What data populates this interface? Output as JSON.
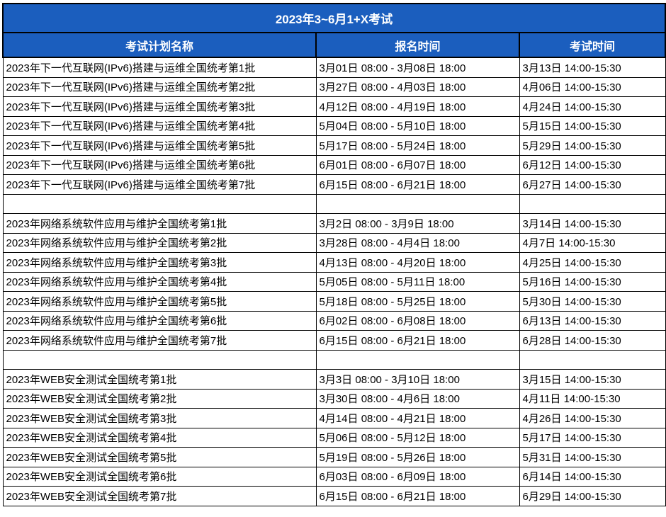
{
  "title": "2023年3~6月1+X考试",
  "colors": {
    "header_blue": "#1B5EBE",
    "border_black": "#000000",
    "row_white": "#ffffff"
  },
  "table": {
    "headers": [
      "考试计划名称",
      "报名时间",
      "考试时间"
    ],
    "rows": [
      [
        "2023年下一代互联网(IPv6)搭建与运维全国统考第1批",
        "3月01日 08:00 - 3月08日 18:00",
        "3月13日 14:00-15:30"
      ],
      [
        "2023年下一代互联网(IPv6)搭建与运维全国统考第2批",
        "3月27日 08:00 - 4月03日 18:00",
        "4月06日 14:00-15:30"
      ],
      [
        "2023年下一代互联网(IPv6)搭建与运维全国统考第3批",
        "4月12日 08:00 - 4月19日 18:00",
        "4月24日 14:00-15:30"
      ],
      [
        "2023年下一代互联网(IPv6)搭建与运维全国统考第4批",
        "5月04日 08:00 - 5月10日 18:00",
        "5月15日 14:00-15:30"
      ],
      [
        "2023年下一代互联网(IPv6)搭建与运维全国统考第5批",
        "5月17日 08:00 - 5月24日 18:00",
        "5月29日 14:00-15:30"
      ],
      [
        "2023年下一代互联网(IPv6)搭建与运维全国统考第6批",
        "6月01日 08:00 - 6月07日 18:00",
        "6月12日 14:00-15:30"
      ],
      [
        "2023年下一代互联网(IPv6)搭建与运维全国统考第7批",
        "6月15日 08:00 - 6月21日 18:00",
        "6月27日 14:00-15:30"
      ],
      [
        "",
        "",
        ""
      ],
      [
        "2023年网络系统软件应用与维护全国统考第1批",
        "3月2日 08:00 - 3月9日 18:00",
        "3月14日 14:00-15:30"
      ],
      [
        "2023年网络系统软件应用与维护全国统考第2批",
        "3月28日 08:00 - 4月4日 18:00",
        "4月7日 14:00-15:30"
      ],
      [
        "2023年网络系统软件应用与维护全国统考第3批",
        "4月13日 08:00 - 4月20日 18:00",
        "4月25日 14:00-15:30"
      ],
      [
        "2023年网络系统软件应用与维护全国统考第4批",
        "5月05日 08:00 - 5月11日 18:00",
        "5月16日 14:00-15:30"
      ],
      [
        "2023年网络系统软件应用与维护全国统考第5批",
        "5月18日 08:00 - 5月25日 18:00",
        "5月30日 14:00-15:30"
      ],
      [
        "2023年网络系统软件应用与维护全国统考第6批",
        "6月02日 08:00 - 6月08日 18:00",
        "6月13日 14:00-15:30"
      ],
      [
        "2023年网络系统软件应用与维护全国统考第7批",
        "6月15日 08:00 - 6月21日 18:00",
        "6月28日 14:00-15:30"
      ],
      [
        "",
        "",
        ""
      ],
      [
        "2023年WEB安全测试全国统考第1批",
        "3月3日 08:00 - 3月10日 18:00",
        "3月15日 14:00-15:30"
      ],
      [
        "2023年WEB安全测试全国统考第2批",
        "3月30日 08:00 - 4月6日 18:00",
        "4月11日 14:00-15:30"
      ],
      [
        "2023年WEB安全测试全国统考第3批",
        "4月14日 08:00 - 4月21日 18:00",
        "4月26日 14:00-15:30"
      ],
      [
        "2023年WEB安全测试全国统考第4批",
        "5月06日 08:00 - 5月12日 18:00",
        "5月17日 14:00-15:30"
      ],
      [
        "2023年WEB安全测试全国统考第5批",
        "5月19日 08:00 - 5月26日 18:00",
        "5月31日 14:00-15:30"
      ],
      [
        "2023年WEB安全测试全国统考第6批",
        "6月03日 08:00 - 6月09日 18:00",
        "6月14日 14:00-15:30"
      ],
      [
        "2023年WEB安全测试全国统考第7批",
        "6月15日 08:00 - 6月21日 18:00",
        "6月29日 14:00-15:30"
      ]
    ],
    "cell_names": [
      "exam-plan-name-cell",
      "registration-time-cell",
      "exam-time-cell"
    ]
  }
}
